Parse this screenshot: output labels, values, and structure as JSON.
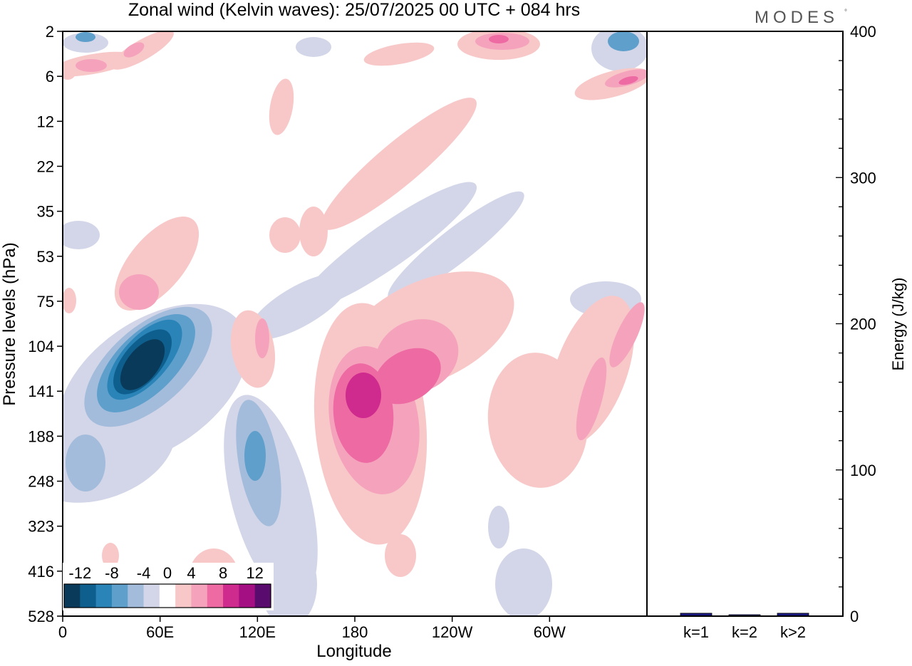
{
  "logo": {
    "text": "MODES",
    "mark": "°"
  },
  "chart_data": [
    {
      "type": "heatmap",
      "title": "Zonal wind (Kelvin waves):  25/07/2025  00 UTC  + 084 hrs",
      "xlabel": "Longitude",
      "ylabel": "Pressure levels (hPa)",
      "x_ticks": [
        "0",
        "60E",
        "120E",
        "180",
        "120W",
        "60W"
      ],
      "x_tick_degrees": [
        0,
        60,
        120,
        180,
        240,
        300
      ],
      "xlim": [
        0,
        360
      ],
      "y_ticks": [
        "2",
        "6",
        "12",
        "22",
        "35",
        "53",
        "75",
        "104",
        "141",
        "188",
        "248",
        "323",
        "416",
        "528"
      ],
      "y_scale": "pressure levels (inverted, top = 2 hPa)",
      "colorbar": {
        "ticks": [
          "-12",
          "-8",
          "-4",
          "0",
          "4",
          "8",
          "12"
        ],
        "bin_edges": [
          -14,
          -12,
          -10,
          -8,
          -6,
          -4,
          -2,
          2,
          4,
          6,
          8,
          10,
          12,
          14
        ],
        "colors": [
          "#0a3a5a",
          "#0e5f8e",
          "#2a84b8",
          "#5f9fcb",
          "#a3bcdb",
          "#d3d6e8",
          "#ffffff",
          "#f8c8c8",
          "#f5a3bd",
          "#ee6aa3",
          "#cf2a8d",
          "#a40f83",
          "#5a0b6e"
        ]
      },
      "features": [
        {
          "lon": 48,
          "p": 130,
          "value": -14
        },
        {
          "lon": 62,
          "p": 95,
          "value": -9
        },
        {
          "lon": 122,
          "p": 200,
          "value": -9
        },
        {
          "lon": 14,
          "p": 3,
          "value": -9
        },
        {
          "lon": 350,
          "p": 3,
          "value": -9
        },
        {
          "lon": 186,
          "p": 150,
          "value": 11
        },
        {
          "lon": 215,
          "p": 150,
          "value": 8
        },
        {
          "lon": 117,
          "p": 125,
          "value": 5
        },
        {
          "lon": 290,
          "p": 190,
          "value": 3
        },
        {
          "lon": 350,
          "p": 6,
          "value": 9
        },
        {
          "lon": 262,
          "p": 3,
          "value": 9
        },
        {
          "lon": 353,
          "p": 85,
          "value": 8
        }
      ]
    },
    {
      "type": "bar",
      "categories": [
        "k=1",
        "k=2",
        "k>2"
      ],
      "values": [
        1.5,
        0.5,
        1.5
      ],
      "ylabel": "Energy (J/kg)",
      "ylim": [
        0,
        400
      ],
      "y_ticks": [
        "0",
        "100",
        "200",
        "300",
        "400"
      ],
      "bar_color": "#1a1a80"
    }
  ]
}
